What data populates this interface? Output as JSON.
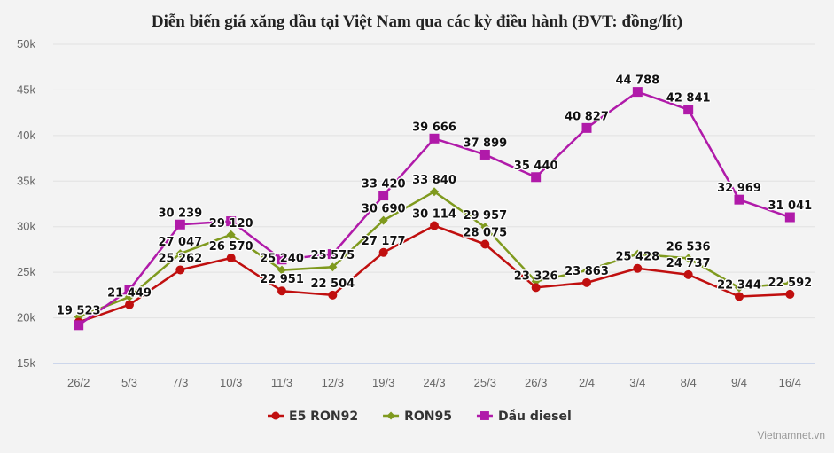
{
  "chart_data": {
    "type": "line",
    "title": "Diễn biến giá xăng dầu tại Việt Nam qua các kỳ điều hành (ĐVT: đồng/lít)",
    "xlabel": "",
    "ylabel": "",
    "categories": [
      "26/2",
      "5/3",
      "7/3",
      "10/3",
      "11/3",
      "12/3",
      "19/3",
      "24/3",
      "25/3",
      "26/3",
      "2/4",
      "3/4",
      "8/4",
      "9/4",
      "16/4"
    ],
    "ylim": [
      15000,
      50000
    ],
    "yticks": [
      15000,
      20000,
      25000,
      30000,
      35000,
      40000,
      45000,
      50000
    ],
    "ytick_labels": [
      "15k",
      "20k",
      "25k",
      "30k",
      "35k",
      "40k",
      "45k",
      "50k"
    ],
    "grid": true,
    "legend_position": "bottom",
    "series": [
      {
        "name": "E5 RON92",
        "color": "#c00f0f",
        "marker": "circle",
        "values": [
          19523,
          21449,
          25262,
          26570,
          22951,
          22504,
          27177,
          30114,
          28075,
          23326,
          23863,
          25428,
          24737,
          22344,
          22592
        ],
        "labeled": [
          true,
          true,
          true,
          true,
          true,
          true,
          true,
          true,
          true,
          true,
          true,
          true,
          true,
          true,
          true
        ]
      },
      {
        "name": "RON95",
        "color": "#7f9a1e",
        "marker": "diamond",
        "values": [
          20100,
          22300,
          27047,
          29120,
          25240,
          25575,
          30690,
          33840,
          29957,
          24000,
          25200,
          27000,
          26536,
          23300,
          23800
        ],
        "labeled": [
          false,
          false,
          true,
          true,
          true,
          true,
          true,
          true,
          true,
          false,
          false,
          false,
          true,
          false,
          false
        ]
      },
      {
        "name": "Dầu diesel",
        "color": "#b01aa9",
        "marker": "square",
        "values": [
          19200,
          23100,
          30239,
          30600,
          26400,
          27000,
          33420,
          39666,
          37899,
          35440,
          40827,
          44788,
          42841,
          32969,
          31041
        ],
        "labeled": [
          false,
          false,
          true,
          false,
          false,
          false,
          true,
          true,
          true,
          true,
          true,
          true,
          true,
          true,
          true
        ]
      }
    ]
  },
  "credit": "Vietnamnet.vn"
}
